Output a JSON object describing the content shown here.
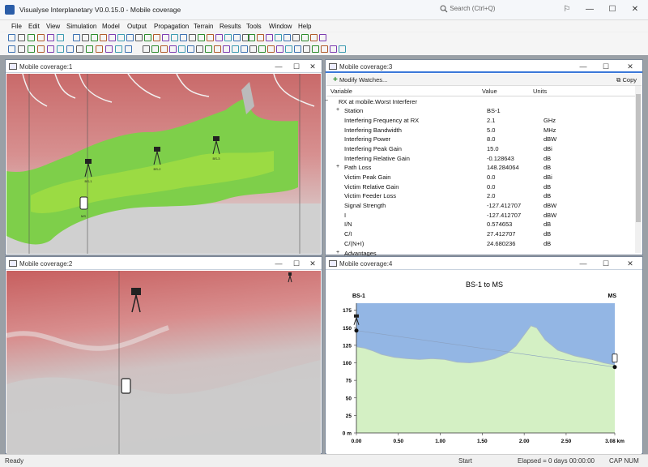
{
  "app": {
    "title": "Visualyse Interplanetary V0.0.15.0 - Mobile coverage",
    "search_placeholder": "Search (Ctrl+Q)"
  },
  "menu": [
    "File",
    "Edit",
    "View",
    "Simulation",
    "Model",
    "Output",
    "Propagation",
    "Terrain",
    "Results",
    "Tools",
    "Window",
    "Help"
  ],
  "windows": {
    "w1": {
      "title": "Mobile coverage:1",
      "stations": [
        "BS-1",
        "BS-2",
        "BS-3",
        "MS"
      ]
    },
    "w2": {
      "title": "Mobile coverage:2"
    },
    "w3": {
      "title": "Mobile coverage:3",
      "modify_label": "Modify Watches...",
      "copy_label": "Copy",
      "columns": [
        "Variable",
        "Value",
        "Units"
      ],
      "rows": [
        {
          "expander": "−",
          "variable": "RX at mobile.Worst Interferer",
          "value": "",
          "units": "",
          "indent": 0
        },
        {
          "expander": "+",
          "variable": "Station",
          "value": "BS-1",
          "units": "",
          "indent": 1
        },
        {
          "expander": "",
          "variable": "Interfering Frequency at RX",
          "value": "2.1",
          "units": "GHz",
          "indent": 1
        },
        {
          "expander": "",
          "variable": "Interfering Bandwidth",
          "value": "5.0",
          "units": "MHz",
          "indent": 1
        },
        {
          "expander": "",
          "variable": "Interfering Power",
          "value": "8.0",
          "units": "dBW",
          "indent": 1
        },
        {
          "expander": "",
          "variable": "Interfering Peak Gain",
          "value": "15.0",
          "units": "dBi",
          "indent": 1
        },
        {
          "expander": "",
          "variable": "Interfering Relative Gain",
          "value": "-0.128643",
          "units": "dB",
          "indent": 1
        },
        {
          "expander": "+",
          "variable": "Path Loss",
          "value": "148.284064",
          "units": "dB",
          "indent": 1
        },
        {
          "expander": "",
          "variable": "Victim Peak Gain",
          "value": "0.0",
          "units": "dBi",
          "indent": 1
        },
        {
          "expander": "",
          "variable": "Victim Relative Gain",
          "value": "0.0",
          "units": "dB",
          "indent": 1
        },
        {
          "expander": "",
          "variable": "Victim Feeder Loss",
          "value": "2.0",
          "units": "dB",
          "indent": 1
        },
        {
          "expander": "",
          "variable": "Signal Strength",
          "value": "-127.412707",
          "units": "dBW",
          "indent": 1
        },
        {
          "expander": "",
          "variable": "I",
          "value": "-127.412707",
          "units": "dBW",
          "indent": 1
        },
        {
          "expander": "",
          "variable": "I/N",
          "value": "0.574653",
          "units": "dB",
          "indent": 1
        },
        {
          "expander": "",
          "variable": "C/I",
          "value": "27.412707",
          "units": "dB",
          "indent": 1
        },
        {
          "expander": "",
          "variable": "C/(N+I)",
          "value": "24.680236",
          "units": "dB",
          "indent": 1
        },
        {
          "expander": "+",
          "variable": "Advantages",
          "value": "",
          "units": "",
          "indent": 1
        }
      ]
    },
    "w4": {
      "title": "Mobile coverage:4"
    }
  },
  "chart_data": {
    "type": "area",
    "title": "BS-1  to  MS",
    "start_label": "BS-1",
    "end_label": "MS",
    "xunit": "km",
    "xticks": [
      "0.00",
      "0.50",
      "1.00",
      "1.50",
      "2.00",
      "2.50",
      "3.08 km"
    ],
    "yticks": [
      "175",
      "150",
      "125",
      "100",
      "75",
      "50",
      "25",
      "0 m"
    ],
    "xlim": [
      0,
      3.08
    ],
    "ylim": [
      0,
      185
    ],
    "x": [
      0,
      0.1,
      0.2,
      0.3,
      0.45,
      0.6,
      0.75,
      0.9,
      1.05,
      1.2,
      1.35,
      1.5,
      1.65,
      1.8,
      1.9,
      2.0,
      2.08,
      2.15,
      2.25,
      2.4,
      2.6,
      2.8,
      2.95,
      3.08
    ],
    "y": [
      123,
      121,
      117,
      112,
      108,
      106,
      105,
      106,
      105,
      101,
      100,
      102,
      106,
      114,
      124,
      140,
      153,
      150,
      133,
      118,
      110,
      105,
      100,
      97
    ],
    "link_start": 146,
    "link_end": 94,
    "colors": {
      "sky": "#93b6e4",
      "terrain": "#d4f0c4",
      "terrain_edge": "#a5b8c8"
    }
  },
  "status": {
    "ready": "Ready",
    "start": "Start",
    "elapsed": "Elapsed = 0 days 00:00:00",
    "caps": "CAP  NUM"
  }
}
